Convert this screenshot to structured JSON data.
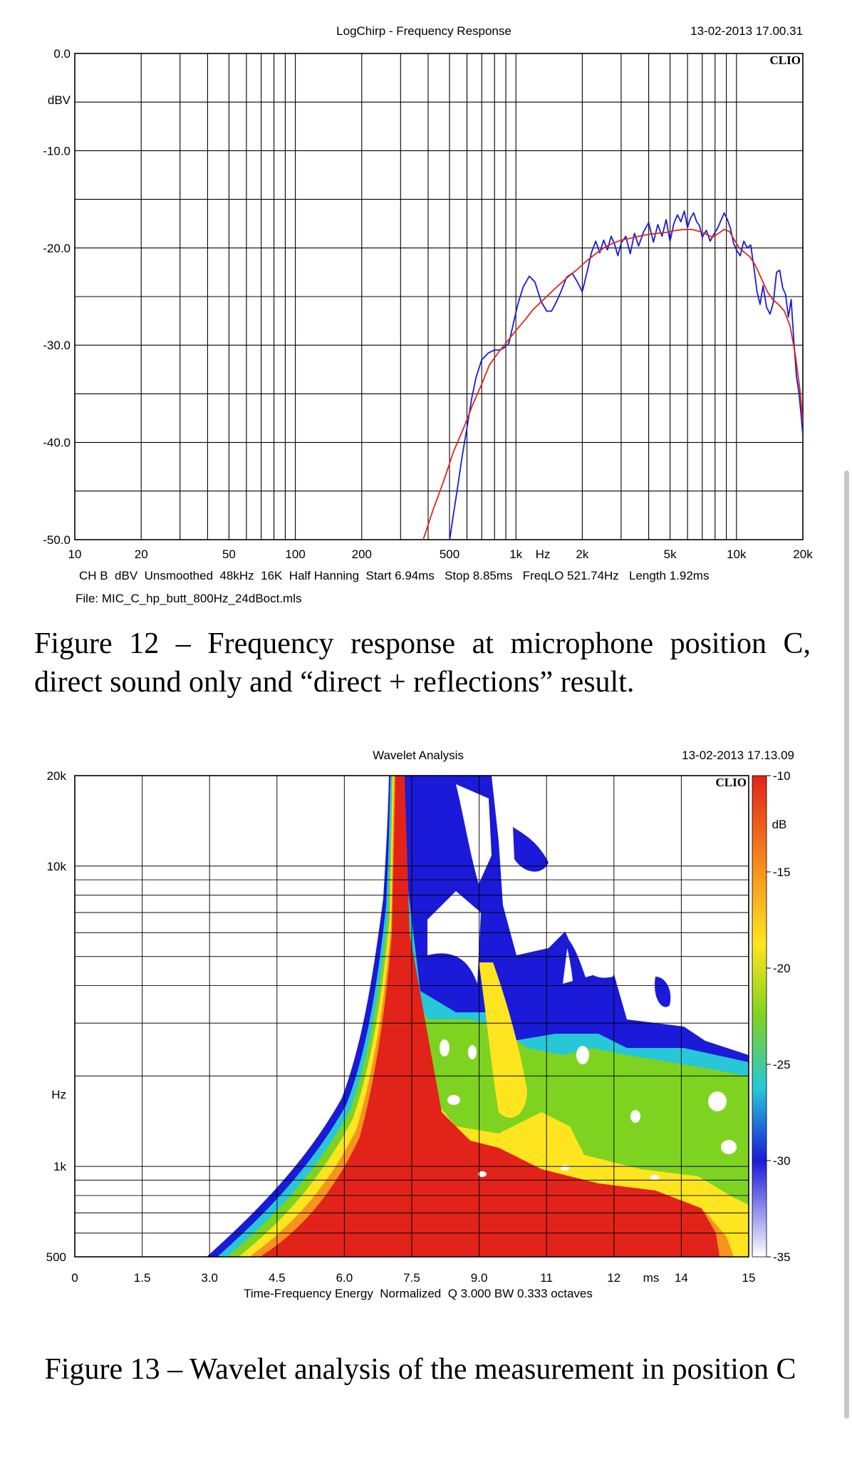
{
  "chart_data": [
    {
      "type": "line",
      "title": "LogChirp - Frequency Response",
      "timestamp": "13-02-2013 17.00.31",
      "brand": "CLIO",
      "ylabel": "dBV",
      "xlabel": "Hz",
      "x_scale": "log",
      "xlim": [
        10,
        20000
      ],
      "ylim": [
        -50,
        0
      ],
      "y_ticks": [
        "0.0",
        "-10.0",
        "-20.0",
        "-30.0",
        "-40.0",
        "-50.0"
      ],
      "y_tick_values": [
        0,
        -10,
        -20,
        -30,
        -40,
        -50
      ],
      "x_ticks": [
        "10",
        "20",
        "50",
        "100",
        "200",
        "500",
        "1k",
        "2k",
        "5k",
        "10k",
        "20k"
      ],
      "x_tick_values": [
        10,
        20,
        50,
        100,
        200,
        500,
        1000,
        2000,
        5000,
        10000,
        20000
      ],
      "grid": true,
      "info_line": "CH B  dBV  Unsmoothed  48kHz  16K  Half Hanning  Start 6.94ms   Stop 8.85ms   FreqLO 521.74Hz   Length 1.92ms",
      "file_line": "File: MIC_C_hp_butt_800Hz_24dBoct.mls",
      "series": [
        {
          "color": "#1a1adc",
          "x": [
            497,
            520,
            545,
            570,
            600,
            630,
            660,
            700,
            750,
            800,
            840,
            880,
            930,
            980,
            1020,
            1080,
            1150,
            1220,
            1300,
            1380,
            1450,
            1530,
            1600,
            1700,
            1800,
            1900,
            2000,
            2100,
            2200,
            2300,
            2400,
            2500,
            2600,
            2700,
            2800,
            2900,
            3000,
            3150,
            3300,
            3450,
            3600,
            3800,
            4000,
            4200,
            4400,
            4600,
            4800,
            5000,
            5200,
            5400,
            5600,
            5800,
            6000,
            6200,
            6400,
            6600,
            6800,
            7000,
            7300,
            7600,
            7900,
            8200,
            8500,
            8800,
            9100,
            9400,
            9700,
            10000,
            10400,
            10800,
            11200,
            11600,
            12000,
            12400,
            12800,
            13200,
            13700,
            14200,
            14700,
            15200,
            15700,
            16200,
            16700,
            17200,
            17700,
            18200,
            18700,
            19200,
            19700,
            20000
          ],
          "y": [
            -50.5,
            -47.5,
            -44.5,
            -41.5,
            -38.5,
            -35.5,
            -33.3,
            -31.5,
            -30.8,
            -30.5,
            -30.5,
            -30.3,
            -29.8,
            -27.5,
            -25.8,
            -24,
            -22.9,
            -23.5,
            -25.5,
            -26.5,
            -26.5,
            -25.5,
            -24.5,
            -23,
            -22.6,
            -23.5,
            -24.5,
            -22.5,
            -20.5,
            -19.3,
            -20.5,
            -19.2,
            -20.2,
            -18.8,
            -19.6,
            -20.8,
            -19.5,
            -18.8,
            -20.6,
            -18.5,
            -19.8,
            -18.3,
            -17.4,
            -19.4,
            -17.6,
            -18.8,
            -17.1,
            -19.3,
            -17.5,
            -16.6,
            -17.3,
            -16.2,
            -17.9,
            -16.9,
            -16.4,
            -17.3,
            -17.7,
            -18.9,
            -18.2,
            -19.3,
            -18.6,
            -18,
            -17.2,
            -16.4,
            -17.1,
            -18,
            -19.5,
            -20.2,
            -20.8,
            -19.3,
            -20,
            -19.7,
            -22,
            -24.5,
            -25.8,
            -23.9,
            -26.1,
            -26.8,
            -25.6,
            -22.5,
            -22.3,
            -24.1,
            -24.8,
            -27.1,
            -25.3,
            -29.5,
            -33.2,
            -34.9,
            -37.5,
            -39.3
          ]
        },
        {
          "color": "#dc2a1a",
          "x": [
            380,
            420,
            470,
            520,
            580,
            640,
            700,
            760,
            830,
            900,
            1000,
            1100,
            1200,
            1350,
            1500,
            1700,
            1900,
            2100,
            2300,
            2500,
            2700,
            3000,
            3300,
            3600,
            4000,
            4400,
            4800,
            5300,
            5800,
            6300,
            6800,
            7300,
            7800,
            8300,
            8800,
            9300,
            9800,
            10300,
            10800,
            11500,
            12200,
            13000,
            13800,
            14600,
            15500,
            16500,
            17500,
            18500,
            19500,
            20000
          ],
          "y": [
            -50,
            -47,
            -44,
            -41,
            -38.5,
            -36,
            -34,
            -32,
            -30.8,
            -29.8,
            -28.5,
            -27.4,
            -26.3,
            -25.2,
            -24.2,
            -23.1,
            -22.2,
            -21.3,
            -20.6,
            -20,
            -19.6,
            -19.2,
            -19,
            -18.8,
            -18.6,
            -18.5,
            -18.4,
            -18.2,
            -18.1,
            -18.1,
            -18.3,
            -18.6,
            -18.9,
            -18.5,
            -18.1,
            -18.3,
            -19.2,
            -20,
            -20.4,
            -20.9,
            -21.8,
            -23.2,
            -24.5,
            -25.3,
            -25.8,
            -26.5,
            -28,
            -31,
            -35,
            -38
          ]
        }
      ]
    },
    {
      "type": "heatmap",
      "title": "Wavelet Analysis",
      "timestamp": "13-02-2013 17.13.09",
      "brand": "CLIO",
      "xlabel": "ms",
      "ylabel": "Hz",
      "xlim": [
        0,
        15
      ],
      "ylim": [
        500,
        20000
      ],
      "y_scale": "log",
      "x_ticks": [
        "0",
        "1.5",
        "3.0",
        "4.5",
        "6.0",
        "7.5",
        "9.0",
        "11",
        "12",
        "14",
        "15"
      ],
      "x_tick_values": [
        0,
        1.5,
        3,
        4.5,
        6,
        7.5,
        9,
        10.5,
        12,
        13.5,
        15
      ],
      "y_ticks": [
        "20k",
        "10k",
        "1k",
        "500"
      ],
      "y_tick_values": [
        20000,
        10000,
        1000,
        500
      ],
      "grid": true,
      "colorbar": {
        "label": "dB",
        "ticks": [
          "-10",
          "-15",
          "-20",
          "-25",
          "-30",
          "-35"
        ],
        "tick_values": [
          -10,
          -15,
          -20,
          -25,
          -30,
          -35
        ],
        "colors": [
          "#e2231a",
          "#f7941d",
          "#ffe51f",
          "#7ed321",
          "#27c7d8",
          "#1a1ad8",
          "#ffffff"
        ]
      },
      "footer_line": "Time-Frequency Energy  Normalized  Q 3.000 BW 0.333 octaves"
    }
  ],
  "captions": {
    "fig12": "Figure 12 – Frequency response at microphone position C, direct sound only and “direct + reflections” result.",
    "fig13": "Figure 13 – Wavelet analysis of the measurement in position C"
  }
}
